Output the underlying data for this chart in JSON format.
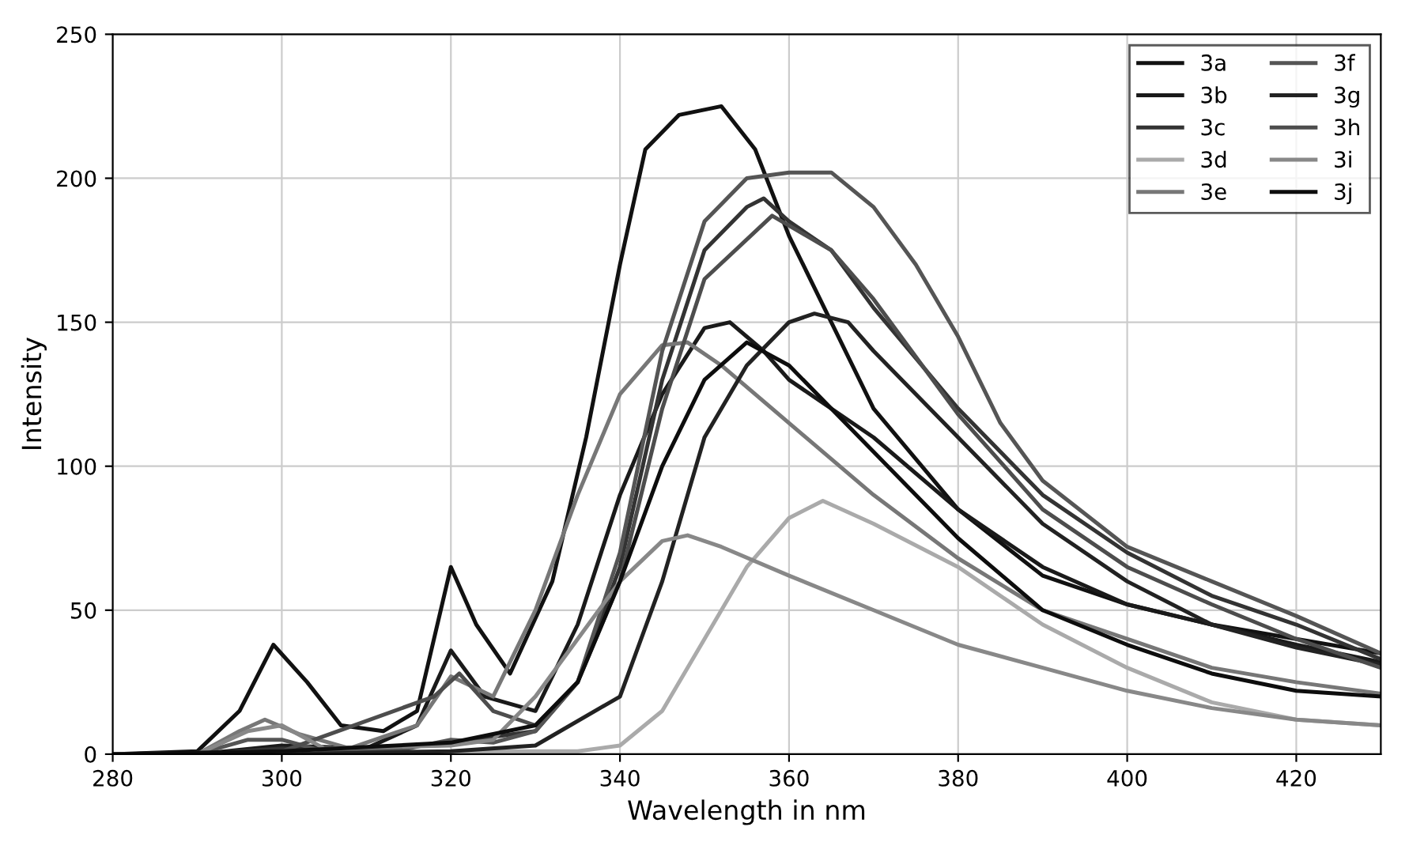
{
  "chart_data": {
    "type": "line",
    "xlabel": "Wavelength in nm",
    "ylabel": "Intensity",
    "xlim": [
      280,
      430
    ],
    "xticks": [
      280,
      300,
      320,
      340,
      360,
      380,
      400,
      420
    ],
    "ylim": [
      0,
      250
    ],
    "yticks": [
      0,
      50,
      100,
      150,
      200,
      250
    ],
    "grid": true,
    "legend": "top right",
    "marker": "none",
    "line_style": "solid",
    "series": [
      {
        "name": "3a",
        "color": "#111111",
        "x": [
          280,
          290,
          295,
          299,
          303,
          307,
          312,
          316,
          320,
          323,
          327,
          332,
          336,
          340,
          343,
          347,
          352,
          356,
          360,
          365,
          370,
          380,
          390,
          400,
          410,
          420,
          430
        ],
        "values": [
          0,
          1,
          15,
          38,
          25,
          10,
          8,
          15,
          65,
          45,
          28,
          60,
          110,
          170,
          210,
          222,
          225,
          210,
          180,
          150,
          120,
          85,
          62,
          52,
          45,
          40,
          35
        ]
      },
      {
        "name": "3b",
        "color": "#1a1a1a",
        "x": [
          280,
          290,
          300,
          310,
          316,
          320,
          324,
          330,
          335,
          340,
          345,
          350,
          353,
          357,
          360,
          370,
          380,
          390,
          400,
          410,
          420,
          430
        ],
        "values": [
          0,
          0,
          3,
          2,
          10,
          36,
          20,
          15,
          45,
          90,
          125,
          148,
          150,
          140,
          130,
          110,
          85,
          65,
          52,
          45,
          38,
          32
        ]
      },
      {
        "name": "3c",
        "color": "#333333",
        "x": [
          280,
          290,
          300,
          310,
          320,
          330,
          335,
          340,
          345,
          350,
          355,
          357,
          360,
          365,
          370,
          380,
          390,
          400,
          410,
          420,
          430
        ],
        "values": [
          0,
          0,
          2,
          1,
          4,
          8,
          25,
          65,
          130,
          175,
          190,
          193,
          185,
          175,
          155,
          120,
          90,
          70,
          55,
          45,
          33
        ]
      },
      {
        "name": "3d",
        "color": "#aaaaaa",
        "x": [
          280,
          300,
          320,
          335,
          340,
          345,
          350,
          355,
          360,
          364,
          370,
          380,
          390,
          400,
          410,
          420,
          430
        ],
        "values": [
          0,
          0,
          1,
          1,
          3,
          15,
          40,
          65,
          82,
          88,
          80,
          65,
          45,
          30,
          18,
          12,
          10
        ]
      },
      {
        "name": "3e",
        "color": "#777777",
        "x": [
          280,
          290,
          295,
          298,
          302,
          308,
          316,
          320,
          325,
          330,
          335,
          340,
          345,
          348,
          352,
          360,
          370,
          380,
          390,
          400,
          410,
          420,
          430
        ],
        "values": [
          0,
          0,
          8,
          12,
          7,
          2,
          10,
          27,
          20,
          50,
          90,
          125,
          142,
          143,
          135,
          115,
          90,
          68,
          50,
          40,
          30,
          25,
          21
        ]
      },
      {
        "name": "3f",
        "color": "#555555",
        "x": [
          280,
          290,
          296,
          300,
          305,
          315,
          320,
          325,
          330,
          335,
          340,
          345,
          350,
          355,
          360,
          365,
          370,
          375,
          380,
          385,
          390,
          400,
          410,
          420,
          430
        ],
        "values": [
          0,
          0,
          5,
          5,
          1,
          2,
          5,
          4,
          8,
          25,
          70,
          140,
          185,
          200,
          202,
          202,
          190,
          170,
          145,
          115,
          95,
          72,
          60,
          48,
          35
        ]
      },
      {
        "name": "3g",
        "color": "#222222",
        "x": [
          280,
          300,
          320,
          330,
          340,
          345,
          350,
          355,
          360,
          363,
          367,
          370,
          380,
          390,
          400,
          410,
          420,
          430
        ],
        "values": [
          0,
          0,
          1,
          3,
          20,
          60,
          110,
          135,
          150,
          153,
          150,
          140,
          110,
          80,
          60,
          45,
          37,
          31
        ]
      },
      {
        "name": "3h",
        "color": "#4d4d4d",
        "x": [
          280,
          300,
          318,
          321,
          325,
          330,
          335,
          340,
          345,
          350,
          358,
          365,
          370,
          380,
          390,
          400,
          410,
          420,
          430
        ],
        "values": [
          0,
          1,
          20,
          28,
          15,
          10,
          25,
          60,
          120,
          165,
          187,
          175,
          158,
          118,
          85,
          65,
          52,
          40,
          30
        ]
      },
      {
        "name": "3i",
        "color": "#888888",
        "x": [
          280,
          290,
          296,
          300,
          305,
          320,
          325,
          330,
          335,
          340,
          345,
          348,
          352,
          360,
          370,
          380,
          390,
          400,
          410,
          420,
          430
        ],
        "values": [
          0,
          0,
          8,
          10,
          2,
          3,
          5,
          20,
          40,
          60,
          74,
          76,
          72,
          62,
          50,
          38,
          30,
          22,
          16,
          12,
          10
        ]
      },
      {
        "name": "3j",
        "color": "#0d0d0d",
        "x": [
          280,
          300,
          320,
          330,
          335,
          340,
          345,
          350,
          355,
          360,
          370,
          380,
          390,
          400,
          410,
          420,
          430
        ],
        "values": [
          0,
          1,
          4,
          10,
          25,
          60,
          100,
          130,
          143,
          135,
          105,
          75,
          50,
          38,
          28,
          22,
          20
        ]
      }
    ]
  }
}
